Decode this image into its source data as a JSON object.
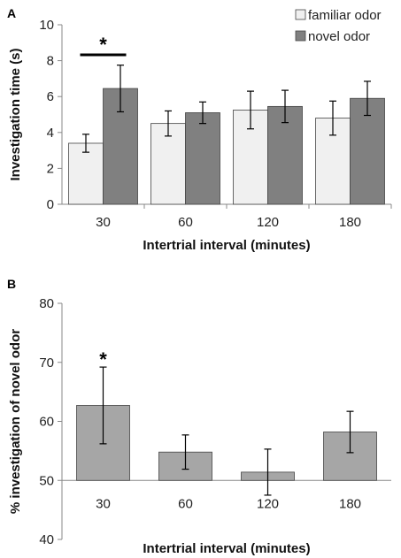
{
  "figure": {
    "panels": [
      "A",
      "B"
    ]
  },
  "chart_data": [
    {
      "panel": "A",
      "type": "bar",
      "categories": [
        "30",
        "60",
        "120",
        "180"
      ],
      "series": [
        {
          "name": "familiar odor",
          "color": "#f0f0f0",
          "values": [
            3.4,
            4.5,
            5.25,
            4.8
          ],
          "errors": [
            0.5,
            0.7,
            1.05,
            0.95
          ]
        },
        {
          "name": "novel odor",
          "color": "#808080",
          "values": [
            6.45,
            5.1,
            5.45,
            5.9
          ],
          "errors": [
            1.3,
            0.6,
            0.9,
            0.95
          ]
        }
      ],
      "title": "",
      "xlabel": "Intertrial interval (minutes)",
      "ylabel": "Investigation time (s)",
      "ylim": [
        0,
        10
      ],
      "yticks": [
        0,
        2,
        4,
        6,
        8,
        10
      ],
      "legend": "top-right",
      "grid": false,
      "annotations": [
        {
          "text": "*",
          "category": "30",
          "type": "significance-bracket"
        }
      ]
    },
    {
      "panel": "B",
      "type": "bar",
      "categories": [
        "30",
        "60",
        "120",
        "180"
      ],
      "series": [
        {
          "color": "#a6a6a6",
          "values": [
            62.7,
            54.8,
            51.4,
            58.2
          ],
          "errors": [
            6.5,
            2.9,
            3.9,
            3.5
          ]
        }
      ],
      "title": "",
      "xlabel": "Intertrial interval (minutes)",
      "ylabel": "% investigation of novel odor",
      "ylim": [
        40,
        80
      ],
      "yticks": [
        40,
        50,
        60,
        70,
        80
      ],
      "baseline": 50,
      "grid": false,
      "annotations": [
        {
          "text": "*",
          "category": "30",
          "type": "significance"
        }
      ]
    }
  ]
}
